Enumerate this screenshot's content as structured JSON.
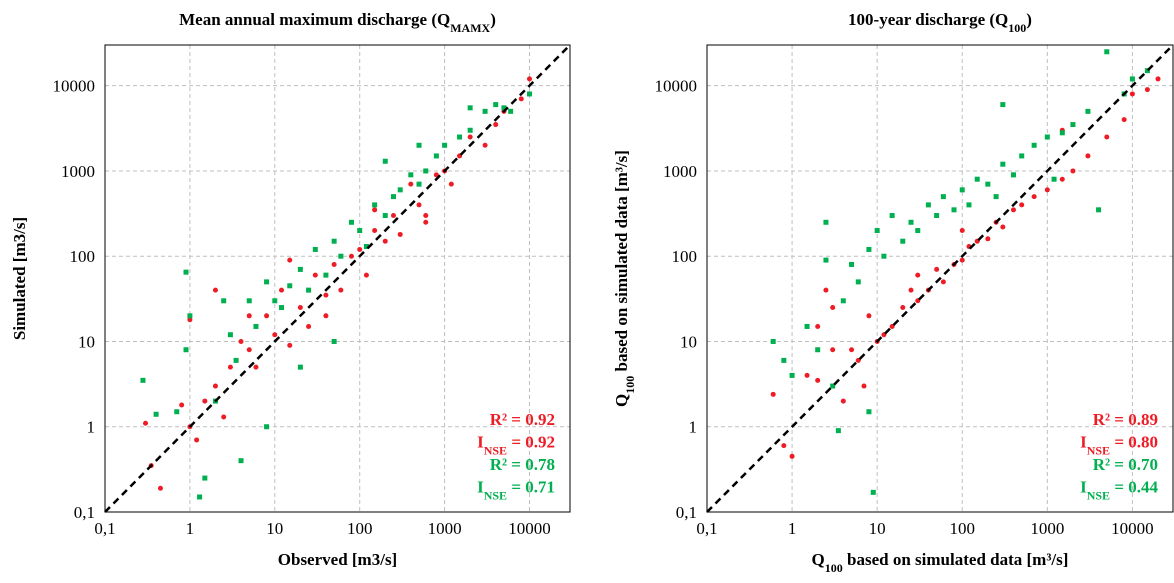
{
  "chart_data": [
    {
      "type": "scatter",
      "title": [
        {
          "text": "Mean annual maximum discharge (Q"
        },
        {
          "text": "MAMX",
          "sub": true
        },
        {
          "text": ")"
        }
      ],
      "xlabel": [
        {
          "text": "Observed [m3/s]"
        }
      ],
      "ylabel": [
        {
          "text": "Simulated [m3/s]"
        }
      ],
      "log_scale": true,
      "grid": true,
      "diagonal": true,
      "xlim": [
        0.1,
        30000
      ],
      "ylim": [
        0.1,
        30000
      ],
      "xticks": [
        {
          "value": 0.1,
          "label": "0,1"
        },
        1,
        10,
        100,
        1000,
        10000
      ],
      "yticks": [
        {
          "value": 0.1,
          "label": "0,1"
        },
        1,
        10,
        100,
        1000,
        10000
      ],
      "series": [
        {
          "color": "#ee1c25",
          "marker": "circle",
          "x": [
            0.3,
            0.35,
            0.45,
            0.8,
            1,
            1.2,
            1.5,
            2,
            2.5,
            3,
            4,
            5,
            6,
            8,
            10,
            12,
            15,
            20,
            25,
            30,
            40,
            50,
            60,
            80,
            100,
            120,
            150,
            200,
            250,
            300,
            400,
            500,
            600,
            800,
            1000,
            1200,
            1500,
            2000,
            3000,
            4000,
            5000,
            8000,
            10000,
            1,
            2,
            5,
            15,
            40,
            150,
            600
          ],
          "values": [
            1.1,
            0.35,
            0.19,
            1.8,
            1,
            0.7,
            2,
            3,
            1.3,
            5,
            10,
            8,
            5,
            20,
            12,
            40,
            9,
            25,
            15,
            60,
            35,
            80,
            40,
            100,
            120,
            60,
            200,
            150,
            300,
            180,
            700,
            400,
            300,
            900,
            1000,
            700,
            1500,
            2500,
            2000,
            3500,
            5000,
            7000,
            12000,
            18,
            40,
            20,
            90,
            20,
            350,
            250
          ]
        },
        {
          "color": "#00b050",
          "marker": "square",
          "x": [
            0.28,
            0.4,
            0.7,
            0.9,
            1,
            1.3,
            1.5,
            2,
            3,
            3.5,
            4,
            5,
            6,
            8,
            10,
            12,
            15,
            20,
            25,
            30,
            40,
            50,
            60,
            80,
            100,
            120,
            150,
            200,
            250,
            300,
            400,
            500,
            600,
            800,
            1000,
            1500,
            2000,
            3000,
            4000,
            5000,
            6000,
            10000,
            0.9,
            2.5,
            8,
            20,
            50,
            200,
            500,
            2000
          ],
          "values": [
            3.5,
            1.4,
            1.5,
            65,
            20,
            0.15,
            0.25,
            2,
            12,
            6,
            0.4,
            30,
            15,
            50,
            30,
            25,
            45,
            70,
            40,
            120,
            60,
            150,
            100,
            250,
            200,
            130,
            400,
            300,
            500,
            600,
            900,
            700,
            1000,
            1500,
            2000,
            2500,
            3000,
            5000,
            6000,
            5500,
            5000,
            8000,
            8,
            30,
            1,
            5,
            10,
            1300,
            2000,
            5500
          ]
        }
      ],
      "stats": [
        {
          "color": "#ee1c25",
          "parts": [
            {
              "text": "R² = 0.92"
            }
          ]
        },
        {
          "color": "#ee1c25",
          "parts": [
            {
              "text": "I"
            },
            {
              "text": "NSE",
              "sub": true
            },
            {
              "text": " = 0.92"
            }
          ]
        },
        {
          "color": "#00b050",
          "parts": [
            {
              "text": "R² = 0.78"
            }
          ]
        },
        {
          "color": "#00b050",
          "parts": [
            {
              "text": "I"
            },
            {
              "text": "NSE",
              "sub": true
            },
            {
              "text": " = 0.71"
            }
          ]
        }
      ]
    },
    {
      "type": "scatter",
      "title": [
        {
          "text": "100-year discharge (Q"
        },
        {
          "text": "100",
          "sub": true
        },
        {
          "text": ")"
        }
      ],
      "xlabel": [
        {
          "text": "Q"
        },
        {
          "text": "100",
          "sub": true
        },
        {
          "text": " based on simulated data [m³/s]"
        }
      ],
      "ylabel": [
        {
          "text": "Q"
        },
        {
          "text": "100",
          "sub": true
        },
        {
          "text": " based on simulated data [m³/s]"
        }
      ],
      "log_scale": true,
      "grid": true,
      "diagonal": true,
      "xlim": [
        0.1,
        30000
      ],
      "ylim": [
        0.1,
        30000
      ],
      "xticks": [
        {
          "value": 0.1,
          "label": "0,1"
        },
        1,
        10,
        100,
        1000,
        10000
      ],
      "yticks": [
        {
          "value": 0.1,
          "label": "0,1"
        },
        1,
        10,
        100,
        1000,
        10000
      ],
      "series": [
        {
          "color": "#ee1c25",
          "marker": "circle",
          "x": [
            0.6,
            0.8,
            1,
            1.5,
            2,
            2.5,
            3,
            4,
            5,
            6,
            8,
            10,
            12,
            15,
            20,
            25,
            30,
            40,
            50,
            60,
            80,
            100,
            120,
            150,
            200,
            250,
            300,
            400,
            500,
            700,
            1000,
            1500,
            2000,
            3000,
            5000,
            8000,
            10000,
            15000,
            20000,
            2,
            3,
            7,
            30,
            100,
            400,
            1500
          ],
          "values": [
            2.4,
            0.6,
            0.45,
            4,
            3.5,
            40,
            25,
            2,
            8,
            6,
            20,
            10,
            12,
            15,
            25,
            40,
            30,
            40,
            70,
            50,
            80,
            90,
            130,
            150,
            160,
            250,
            220,
            350,
            400,
            500,
            600,
            800,
            1000,
            1500,
            2500,
            4000,
            8000,
            9000,
            12000,
            15,
            8,
            3,
            60,
            200,
            900,
            3000
          ]
        },
        {
          "color": "#00b050",
          "marker": "square",
          "x": [
            0.6,
            0.8,
            1,
            1.5,
            2,
            2.5,
            3,
            4,
            5,
            6,
            8,
            9,
            10,
            12,
            15,
            20,
            25,
            30,
            40,
            50,
            60,
            80,
            100,
            120,
            150,
            200,
            250,
            300,
            400,
            500,
            700,
            1000,
            1500,
            2000,
            3000,
            5000,
            8000,
            10000,
            15000,
            4000,
            2.5,
            3.5,
            8,
            300,
            1200
          ],
          "values": [
            10,
            6,
            4,
            15,
            8,
            250,
            3,
            30,
            80,
            50,
            120,
            0.17,
            200,
            100,
            300,
            150,
            250,
            200,
            400,
            300,
            500,
            350,
            600,
            400,
            800,
            700,
            500,
            1200,
            900,
            1500,
            2000,
            2500,
            2800,
            3500,
            5000,
            25000,
            8000,
            12000,
            15000,
            350,
            90,
            0.9,
            1.5,
            6000,
            800
          ]
        }
      ],
      "stats": [
        {
          "color": "#ee1c25",
          "parts": [
            {
              "text": "R² = 0.89"
            }
          ]
        },
        {
          "color": "#ee1c25",
          "parts": [
            {
              "text": "I"
            },
            {
              "text": "NSE",
              "sub": true
            },
            {
              "text": " = 0.80"
            }
          ]
        },
        {
          "color": "#00b050",
          "parts": [
            {
              "text": "R² = 0.70"
            }
          ]
        },
        {
          "color": "#00b050",
          "parts": [
            {
              "text": "I"
            },
            {
              "text": "NSE",
              "sub": true
            },
            {
              "text": " = 0.44"
            }
          ]
        }
      ]
    }
  ]
}
